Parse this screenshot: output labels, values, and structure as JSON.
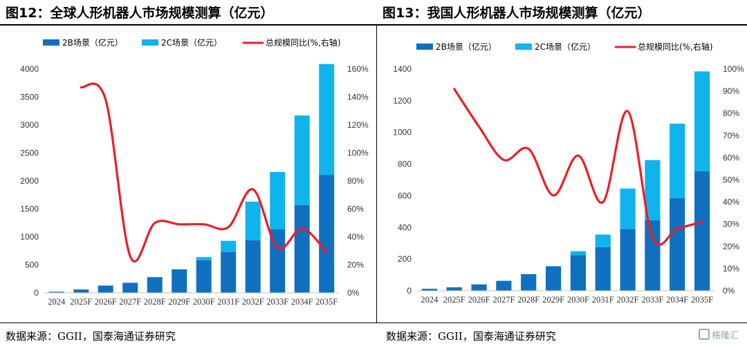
{
  "charts_meta": [
    {
      "title": "图12：全球人形机器人市场规模测算（亿元）",
      "source": "数据来源：GGII，国泰海通证券研究"
    },
    {
      "title": "图13：我国人形机器人市场规模测算（亿元）",
      "source": "数据来源：GGII，国泰海通证券研究"
    }
  ],
  "colors": {
    "series_2b": "#0f70c0",
    "series_2c": "#0fb4ec",
    "line": "#ef1c24",
    "axis": "#bfbfbf"
  },
  "watermark": "格隆汇",
  "chart_data": [
    {
      "type": "bar",
      "stacked": true,
      "title": "图12：全球人形机器人市场规模测算（亿元）",
      "categories": [
        "2024",
        "2025F",
        "2026F",
        "2027F",
        "2028F",
        "2029F",
        "2030F",
        "2031F",
        "2032F",
        "2033F",
        "2034F",
        "2035F"
      ],
      "series": [
        {
          "name": "2B场景（亿元）",
          "values": [
            20,
            60,
            130,
            180,
            280,
            420,
            580,
            730,
            940,
            1140,
            1570,
            2110
          ]
        },
        {
          "name": "2C场景（亿元）",
          "values": [
            0,
            0,
            0,
            0,
            0,
            0,
            60,
            200,
            690,
            1020,
            1600,
            1980
          ]
        }
      ],
      "line_series": {
        "name": "总规模同比(%,右轴)",
        "axis": "right",
        "values": [
          null,
          147,
          138,
          26,
          50,
          49,
          49,
          47,
          74,
          32,
          46,
          29
        ]
      },
      "ylim": [
        0,
        4000
      ],
      "y_ticks": [
        0,
        500,
        1000,
        1500,
        2000,
        2500,
        3000,
        3500,
        4000
      ],
      "y2lim": [
        0,
        160
      ],
      "y2_ticks": [
        "0%",
        "20%",
        "40%",
        "60%",
        "80%",
        "100%",
        "120%",
        "140%",
        "160%"
      ],
      "legend": [
        "2B场景（亿元）",
        "2C场景（亿元）",
        "总规模同比(%,右轴)"
      ],
      "legend_position": "top"
    },
    {
      "type": "bar",
      "stacked": true,
      "title": "图13：我国人形机器人市场规模测算（亿元）",
      "categories": [
        "2024",
        "2025F",
        "2026F",
        "2027F",
        "2028F",
        "2029F",
        "2030F",
        "2031F",
        "2032F",
        "2033F",
        "2034F",
        "2035F"
      ],
      "series": [
        {
          "name": "2B场景（亿元）",
          "values": [
            12,
            22,
            40,
            63,
            105,
            155,
            225,
            275,
            390,
            445,
            585,
            755
          ]
        },
        {
          "name": "2C场景（亿元）",
          "values": [
            0,
            0,
            0,
            0,
            0,
            0,
            25,
            80,
            255,
            380,
            470,
            630
          ]
        }
      ],
      "line_series": {
        "name": "总规模同比(%,右轴)",
        "axis": "right",
        "values": [
          null,
          91,
          74,
          59,
          64,
          43,
          61,
          40,
          81,
          24,
          28,
          31
        ]
      },
      "ylim": [
        0,
        1400
      ],
      "y_ticks": [
        0,
        200,
        400,
        600,
        800,
        1000,
        1200,
        1400
      ],
      "y2lim": [
        0,
        100
      ],
      "y2_ticks": [
        "0%",
        "10%",
        "20%",
        "30%",
        "40%",
        "50%",
        "60%",
        "70%",
        "80%",
        "90%",
        "100%"
      ],
      "legend": [
        "2B场景（亿元）",
        "2C场景（亿元）",
        "总规模同比(%,右轴)"
      ],
      "legend_position": "top"
    }
  ]
}
